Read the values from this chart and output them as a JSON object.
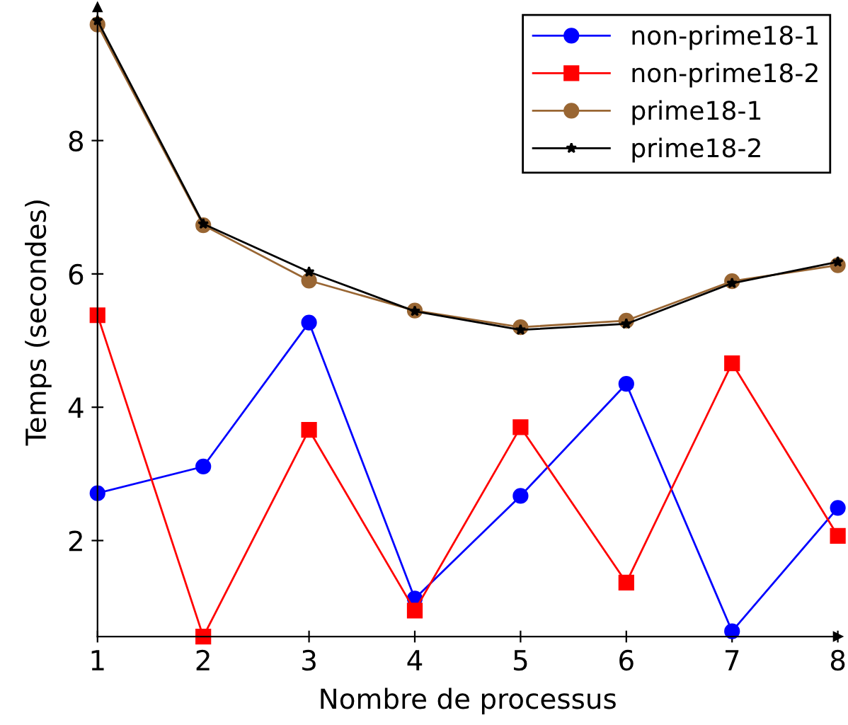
{
  "chart_data": {
    "type": "line",
    "xlabel": "Nombre de processus",
    "ylabel": "Temps (secondes)",
    "x": [
      1,
      2,
      3,
      4,
      5,
      6,
      7,
      8
    ],
    "xlim": [
      1,
      8
    ],
    "xticks": [
      1,
      2,
      3,
      4,
      5,
      6,
      7,
      8
    ],
    "ylim": [
      0.56,
      10
    ],
    "yticks": [
      2,
      4,
      6,
      8
    ],
    "grid": false,
    "legend": "top right",
    "line_style": "solid",
    "series": [
      {
        "name": "non-prime18-1",
        "color": "#0000ff",
        "marker": "circle",
        "values": [
          2.71,
          3.11,
          5.27,
          1.13,
          2.67,
          4.35,
          0.64,
          2.49
        ]
      },
      {
        "name": "non-prime18-2",
        "color": "#ff0000",
        "marker": "square",
        "values": [
          5.38,
          0.56,
          3.66,
          0.95,
          3.7,
          1.37,
          4.66,
          2.07
        ]
      },
      {
        "name": "prime18-1",
        "color": "#996633",
        "marker": "circle",
        "values": [
          9.74,
          6.73,
          5.9,
          5.45,
          5.2,
          5.3,
          5.89,
          6.13
        ]
      },
      {
        "name": "prime18-2",
        "color": "#000000",
        "marker": "star",
        "values": [
          9.8,
          6.75,
          6.03,
          5.44,
          5.16,
          5.25,
          5.86,
          6.18
        ]
      }
    ]
  }
}
